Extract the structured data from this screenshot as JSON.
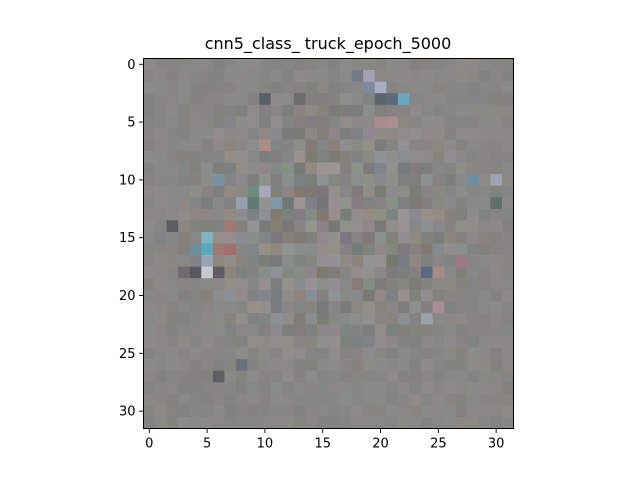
{
  "chart_data": {
    "type": "heatmap",
    "title": "cnn5_class_ truck_epoch_5000",
    "xlabel": "",
    "ylabel": "",
    "image_size": [
      32,
      32
    ],
    "xlim": [
      -0.5,
      31.5
    ],
    "ylim": [
      31.5,
      -0.5
    ],
    "x_ticks": [
      0,
      5,
      10,
      15,
      20,
      25,
      30
    ],
    "y_ticks": [
      0,
      5,
      10,
      15,
      20,
      25,
      30
    ],
    "grid": false,
    "colormap": "rgb",
    "base_color": "#878684",
    "highlight_pixels": [
      {
        "x": 5,
        "y": 15,
        "color": "#7fb3c6"
      },
      {
        "x": 5,
        "y": 16,
        "color": "#5fa6b8"
      },
      {
        "x": 5,
        "y": 17,
        "color": "#9aa3b4"
      },
      {
        "x": 5,
        "y": 18,
        "color": "#c7c7d2"
      },
      {
        "x": 4,
        "y": 16,
        "color": "#6e8f99"
      },
      {
        "x": 6,
        "y": 16,
        "color": "#9c7a72"
      },
      {
        "x": 7,
        "y": 16,
        "color": "#a26f6d"
      },
      {
        "x": 4,
        "y": 18,
        "color": "#5a5860"
      },
      {
        "x": 6,
        "y": 18,
        "color": "#5f5d63"
      },
      {
        "x": 3,
        "y": 18,
        "color": "#706a72"
      },
      {
        "x": 22,
        "y": 3,
        "color": "#6aa8c0"
      },
      {
        "x": 21,
        "y": 3,
        "color": "#5c6a7a"
      },
      {
        "x": 20,
        "y": 2,
        "color": "#a8aec6"
      },
      {
        "x": 19,
        "y": 2,
        "color": "#7c8aa0"
      },
      {
        "x": 20,
        "y": 3,
        "color": "#5c636c"
      },
      {
        "x": 19,
        "y": 1,
        "color": "#a3a0b8"
      },
      {
        "x": 18,
        "y": 1,
        "color": "#757a88"
      },
      {
        "x": 20,
        "y": 5,
        "color": "#a98c8c"
      },
      {
        "x": 21,
        "y": 5,
        "color": "#aa8e90"
      },
      {
        "x": 10,
        "y": 7,
        "color": "#ad8c88"
      },
      {
        "x": 10,
        "y": 11,
        "color": "#a8a8bc"
      },
      {
        "x": 11,
        "y": 12,
        "color": "#7f9aa8"
      },
      {
        "x": 9,
        "y": 12,
        "color": "#5f7a74"
      },
      {
        "x": 9,
        "y": 11,
        "color": "#6e8b82"
      },
      {
        "x": 6,
        "y": 10,
        "color": "#7990a0"
      },
      {
        "x": 24,
        "y": 18,
        "color": "#5b6a80"
      },
      {
        "x": 27,
        "y": 17,
        "color": "#9a7a82"
      },
      {
        "x": 25,
        "y": 18,
        "color": "#a58c8c"
      },
      {
        "x": 28,
        "y": 10,
        "color": "#6e8da0"
      },
      {
        "x": 30,
        "y": 10,
        "color": "#a0a2b4"
      },
      {
        "x": 30,
        "y": 12,
        "color": "#5f6e6e"
      },
      {
        "x": 7,
        "y": 14,
        "color": "#a27872"
      },
      {
        "x": 8,
        "y": 12,
        "color": "#98a0b0"
      },
      {
        "x": 13,
        "y": 3,
        "color": "#6a6c70"
      },
      {
        "x": 10,
        "y": 3,
        "color": "#5d5f66"
      },
      {
        "x": 2,
        "y": 14,
        "color": "#5c5d63"
      },
      {
        "x": 8,
        "y": 26,
        "color": "#6a6f7a"
      },
      {
        "x": 6,
        "y": 27,
        "color": "#5e6064"
      },
      {
        "x": 25,
        "y": 21,
        "color": "#a68e92"
      },
      {
        "x": 24,
        "y": 22,
        "color": "#9aa0a8"
      }
    ]
  }
}
